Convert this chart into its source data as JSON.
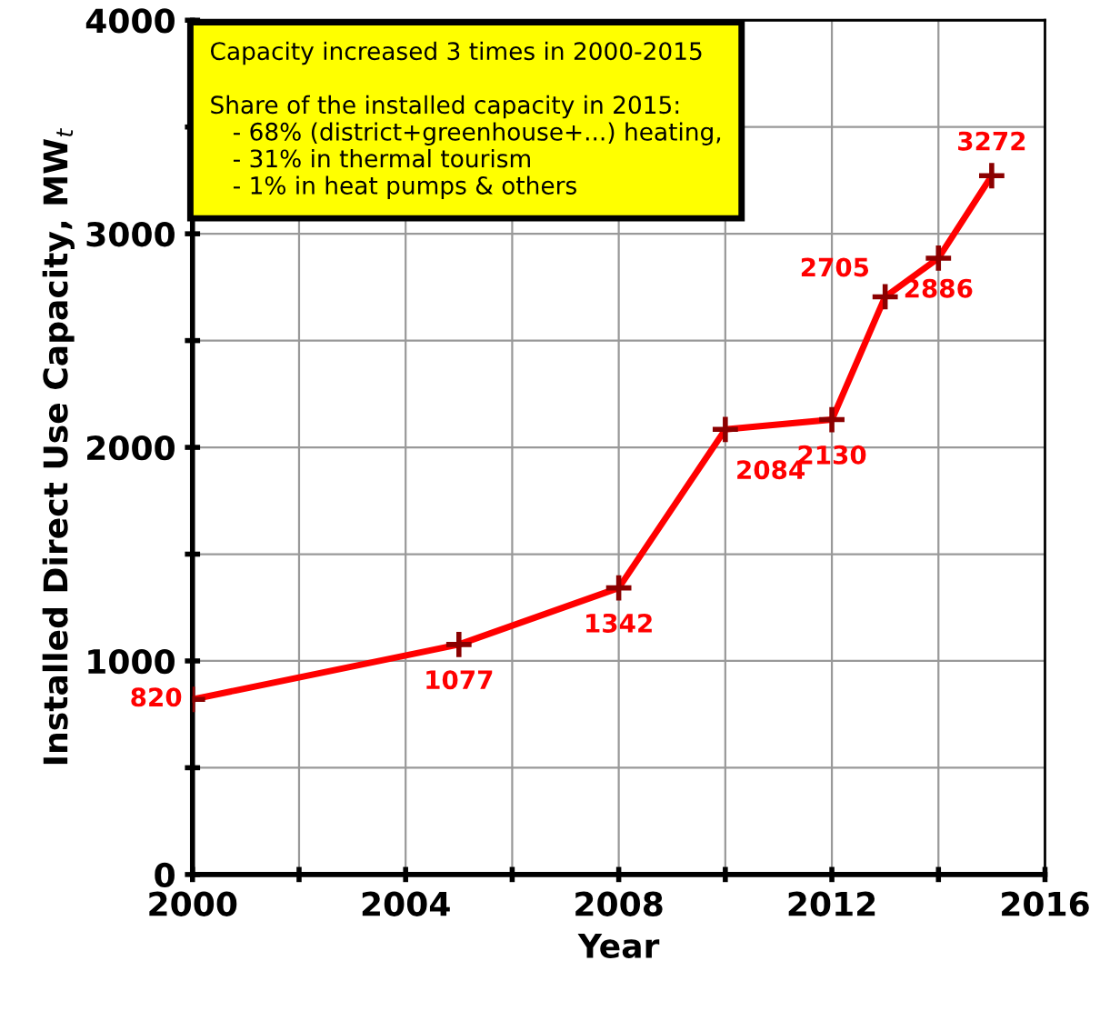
{
  "chart_data": {
    "type": "line",
    "xlabel": "Year",
    "ylabel": "Installed Direct Use Capacity, MW$_{t}$",
    "x": [
      2000,
      2005,
      2008,
      2010,
      2012,
      2013,
      2014,
      2015
    ],
    "series": [
      {
        "color": "#ff0000",
        "values": [
          820,
          1077,
          1342,
          2084,
          2130,
          2705,
          2886,
          3272
        ]
      }
    ],
    "xlim": [
      2000,
      2016
    ],
    "ylim": [
      0,
      4000
    ],
    "xticks": [
      2000,
      {
        "value": 2002,
        "label": null
      },
      2004,
      {
        "value": 2006,
        "label": null
      },
      2008,
      {
        "value": 2010,
        "label": null
      },
      2012,
      {
        "value": 2014,
        "label": null
      },
      2016
    ],
    "yticks": [
      0,
      {
        "value": 500,
        "label": null
      },
      1000,
      {
        "value": 1500,
        "label": null
      },
      2000,
      {
        "value": 2500,
        "label": null
      },
      3000,
      {
        "value": 3500,
        "label": null
      },
      4000
    ],
    "grid": true,
    "marker": "cross",
    "line_style": "solid",
    "data_labels": true,
    "annotations": [
      "Capacity increased 3 times in 2000-2015\n\nShare of the installed capacity in 2015:\n   - 68% (district+greenhouse+...) heating,\n   - 31% in thermal tourism\n   - 1% in heat pumps & others"
    ]
  }
}
